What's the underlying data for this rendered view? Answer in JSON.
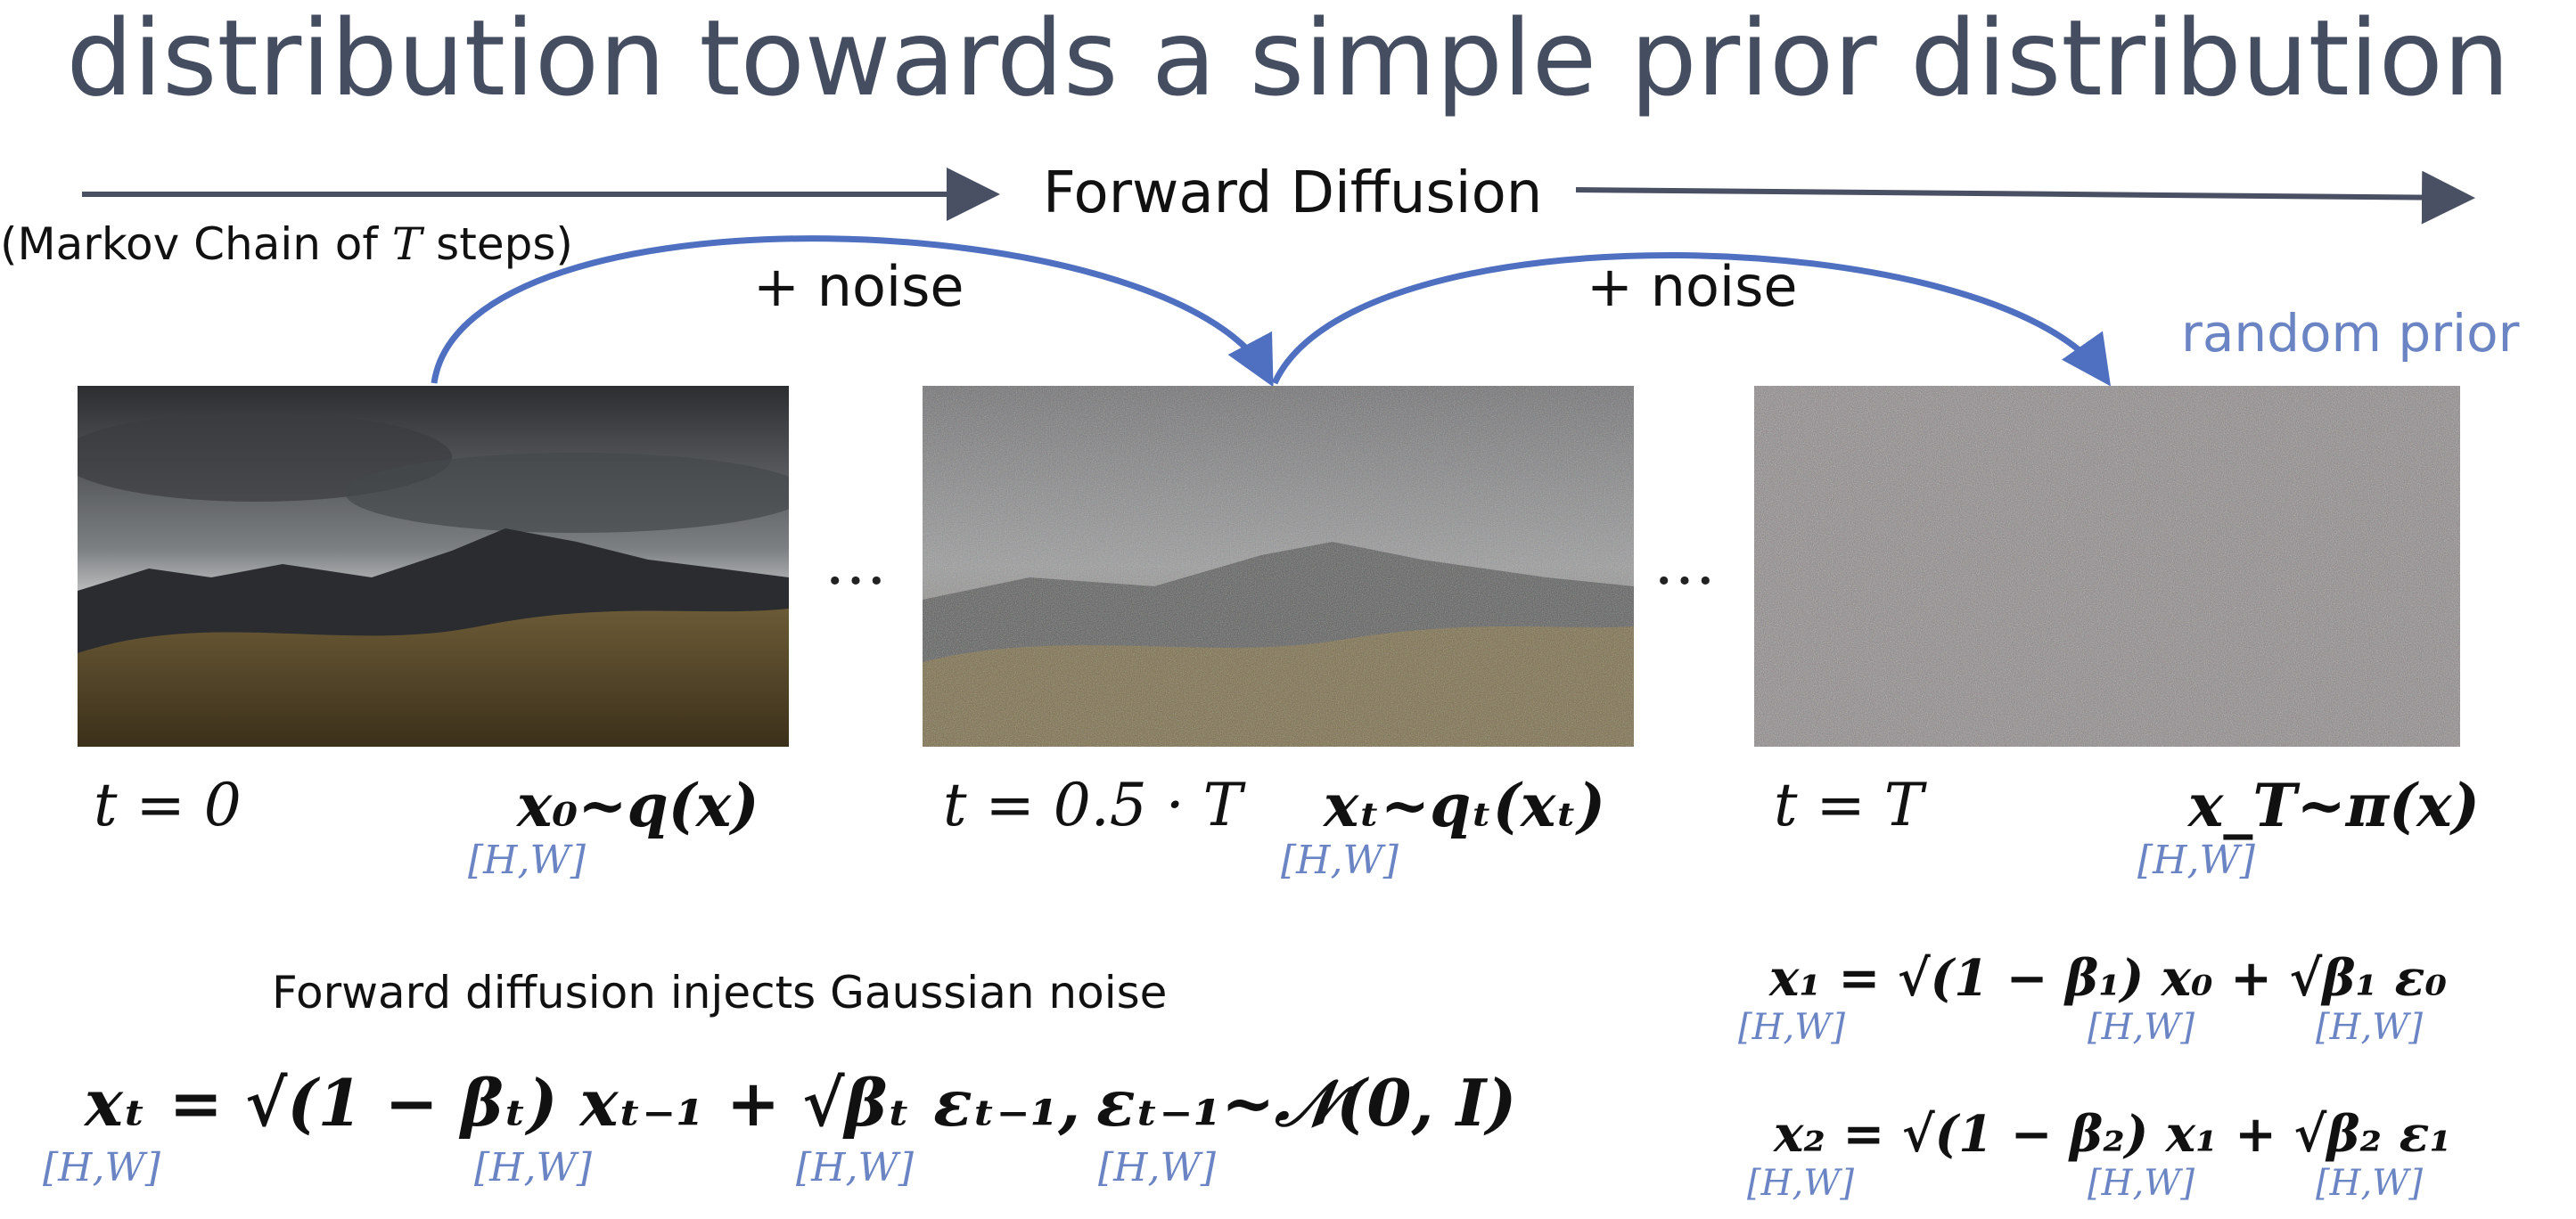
{
  "slide": {
    "title": "distribution towards a simple prior distribution",
    "forward_label": "Forward Diffusion",
    "markov_prefix": "(Markov Chain of ",
    "markov_var": "T",
    "markov_suffix": " steps)",
    "noise_labels": [
      "+ noise",
      "+ noise"
    ],
    "random_prior": "random prior",
    "ellipsis": "…",
    "gaussian_note": "Forward diffusion injects Gaussian noise",
    "shape_label": "[H,W]"
  },
  "frames": [
    {
      "t_label": "t = 0",
      "dist": "x₀~q(x)",
      "image": "landscape-clean"
    },
    {
      "t_label": "t = 0.5 · T",
      "dist": "xₜ~qₜ(xₜ)",
      "image": "landscape-half-noise"
    },
    {
      "t_label": "t = T",
      "dist": "x_T~π(x)",
      "image": "pure-noise"
    }
  ],
  "equations": {
    "main": "xₜ = √(1 − βₜ) xₜ₋₁ + √βₜ εₜ₋₁,",
    "epsilon": "εₜ₋₁~𝒩(0, I)",
    "step1": "x₁ = √(1 − β₁) x₀ + √β₁ ε₀",
    "step2": "x₂ = √(1 − β₂) x₁ + √β₂ ε₁"
  },
  "colors": {
    "title": "#454d61",
    "arrow": "#4a5063",
    "curve": "#4f6fc0",
    "shape_label": "#6a84c4"
  }
}
